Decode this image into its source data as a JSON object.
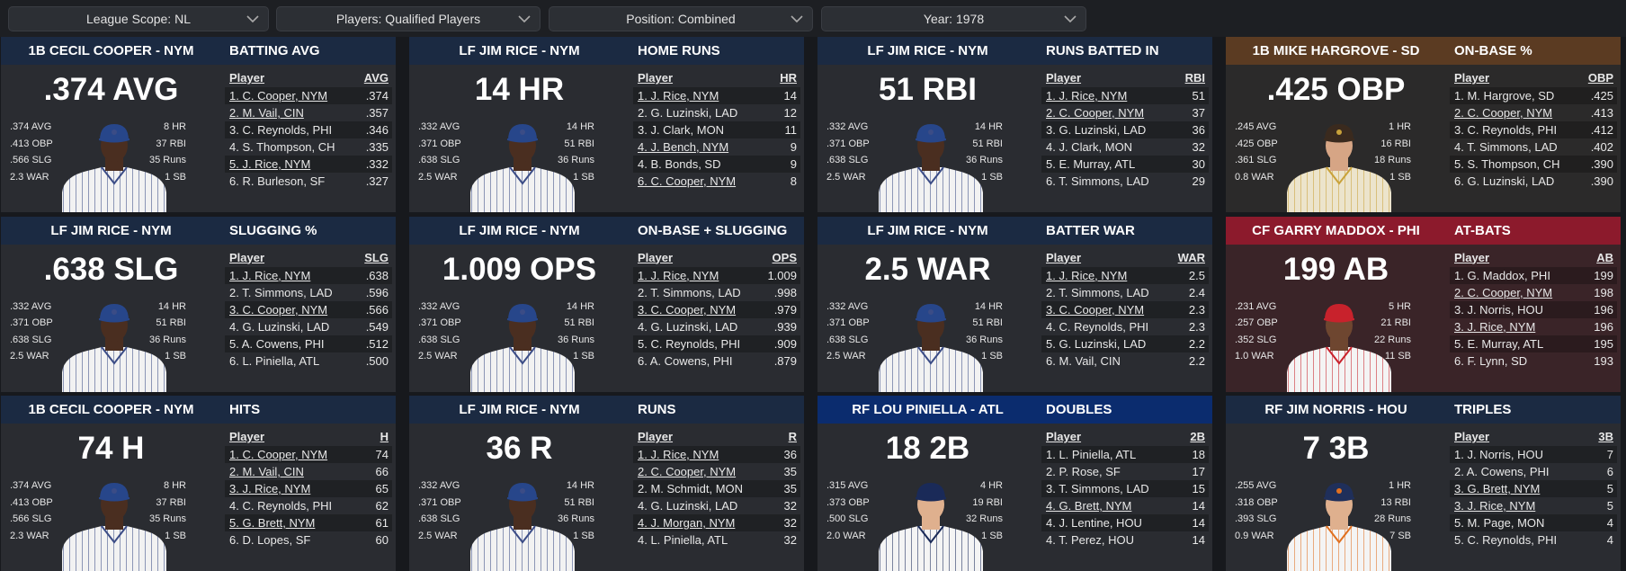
{
  "filters": [
    "League Scope: NL",
    "Players: Qualified Players",
    "Position: Combined",
    "Year: 1978"
  ],
  "cards": [
    {
      "player": "1B CECIL COOPER - NYM",
      "stat": "BATTING AVG",
      "big": ".374 AVG",
      "left": [
        ".374 AVG",
        ".413 OBP",
        ".566 SLG",
        "2.3 WAR"
      ],
      "right": [
        "8 HR",
        "37 RBI",
        "35 Runs",
        "1 SB"
      ],
      "columns": [
        "Player",
        "AVG"
      ],
      "rows": [
        {
          "name": "1. C. Cooper, NYM",
          "value": ".374",
          "linked": true
        },
        {
          "name": "2. M. Vail, CIN",
          "value": ".357",
          "linked": true
        },
        {
          "name": "3. C. Reynolds, PHI",
          "value": ".346",
          "linked": false
        },
        {
          "name": "4. S. Thompson, CH",
          "value": ".335",
          "linked": false
        },
        {
          "name": "5. J. Rice, NYM",
          "value": ".332",
          "linked": true
        },
        {
          "name": "6. R. Burleson, SF",
          "value": ".327",
          "linked": false
        }
      ],
      "header_color": "#1b2a42",
      "body_color": "#2a2c31",
      "uniform": {
        "cap": "#27468a",
        "jersey": "#f2f2f2",
        "stripe": "#3b4c86",
        "skin": "#4a2e20"
      }
    },
    {
      "player": "LF JIM RICE - NYM",
      "stat": "HOME RUNS",
      "big": "14 HR",
      "left": [
        ".332 AVG",
        ".371 OBP",
        ".638 SLG",
        "2.5 WAR"
      ],
      "right": [
        "14 HR",
        "51 RBI",
        "36 Runs",
        "1 SB"
      ],
      "columns": [
        "Player",
        "HR"
      ],
      "rows": [
        {
          "name": "1. J. Rice, NYM",
          "value": "14",
          "linked": true
        },
        {
          "name": "2. G. Luzinski, LAD",
          "value": "12",
          "linked": false
        },
        {
          "name": "3. J. Clark, MON",
          "value": "11",
          "linked": false
        },
        {
          "name": "4. J. Bench, NYM",
          "value": "9",
          "linked": true
        },
        {
          "name": "4. B. Bonds, SD",
          "value": "9",
          "linked": false
        },
        {
          "name": "6. C. Cooper, NYM",
          "value": "8",
          "linked": true
        }
      ],
      "header_color": "#1b2a42",
      "body_color": "#2a2c31",
      "uniform": {
        "cap": "#27468a",
        "jersey": "#f2f2f2",
        "stripe": "#3b4c86",
        "skin": "#4a2e20"
      }
    },
    {
      "player": "LF JIM RICE - NYM",
      "stat": "RUNS BATTED IN",
      "big": "51 RBI",
      "left": [
        ".332 AVG",
        ".371 OBP",
        ".638 SLG",
        "2.5 WAR"
      ],
      "right": [
        "14 HR",
        "51 RBI",
        "36 Runs",
        "1 SB"
      ],
      "columns": [
        "Player",
        "RBI"
      ],
      "rows": [
        {
          "name": "1. J. Rice, NYM",
          "value": "51",
          "linked": true
        },
        {
          "name": "2. C. Cooper, NYM",
          "value": "37",
          "linked": true
        },
        {
          "name": "3. G. Luzinski, LAD",
          "value": "36",
          "linked": false
        },
        {
          "name": "4. J. Clark, MON",
          "value": "32",
          "linked": false
        },
        {
          "name": "5. E. Murray, ATL",
          "value": "30",
          "linked": false
        },
        {
          "name": "6. T. Simmons, LAD",
          "value": "29",
          "linked": false
        }
      ],
      "header_color": "#1b2a42",
      "body_color": "#2a2c31",
      "uniform": {
        "cap": "#27468a",
        "jersey": "#f2f2f2",
        "stripe": "#3b4c86",
        "skin": "#4a2e20"
      }
    },
    {
      "player": "1B MIKE HARGROVE - SD",
      "stat": "ON-BASE %",
      "big": ".425 OBP",
      "left": [
        ".245 AVG",
        ".425 OBP",
        ".361 SLG",
        "0.8 WAR"
      ],
      "right": [
        "1 HR",
        "16 RBI",
        "18 Runs",
        "1 SB"
      ],
      "columns": [
        "Player",
        "OBP"
      ],
      "rows": [
        {
          "name": "1. M. Hargrove, SD",
          "value": ".425",
          "linked": false
        },
        {
          "name": "2. C. Cooper, NYM",
          "value": ".413",
          "linked": true
        },
        {
          "name": "3. C. Reynolds, PHI",
          "value": ".412",
          "linked": false
        },
        {
          "name": "4. T. Simmons, LAD",
          "value": ".402",
          "linked": false
        },
        {
          "name": "5. S. Thompson, CH",
          "value": ".390",
          "linked": false
        },
        {
          "name": "6. G. Luzinski, LAD",
          "value": ".390",
          "linked": false
        }
      ],
      "header_color": "#5b3b22",
      "body_color": "#2b2a2a",
      "uniform": {
        "cap": "#3a2a1e",
        "jersey": "#ece4cc",
        "stripe": "#c9a23a",
        "skin": "#d6a585"
      }
    },
    {
      "player": "LF JIM RICE - NYM",
      "stat": "SLUGGING %",
      "big": ".638 SLG",
      "left": [
        ".332 AVG",
        ".371 OBP",
        ".638 SLG",
        "2.5 WAR"
      ],
      "right": [
        "14 HR",
        "51 RBI",
        "36 Runs",
        "1 SB"
      ],
      "columns": [
        "Player",
        "SLG"
      ],
      "rows": [
        {
          "name": "1. J. Rice, NYM",
          "value": ".638",
          "linked": true
        },
        {
          "name": "2. T. Simmons, LAD",
          "value": ".596",
          "linked": false
        },
        {
          "name": "3. C. Cooper, NYM",
          "value": ".566",
          "linked": true
        },
        {
          "name": "4. G. Luzinski, LAD",
          "value": ".549",
          "linked": false
        },
        {
          "name": "5. A. Cowens, PHI",
          "value": ".512",
          "linked": false
        },
        {
          "name": "6. L. Piniella, ATL",
          "value": ".500",
          "linked": false
        }
      ],
      "header_color": "#1b2a42",
      "body_color": "#2a2c31",
      "uniform": {
        "cap": "#27468a",
        "jersey": "#f2f2f2",
        "stripe": "#3b4c86",
        "skin": "#4a2e20"
      }
    },
    {
      "player": "LF JIM RICE - NYM",
      "stat": "ON-BASE + SLUGGING",
      "big": "1.009 OPS",
      "left": [
        ".332 AVG",
        ".371 OBP",
        ".638 SLG",
        "2.5 WAR"
      ],
      "right": [
        "14 HR",
        "51 RBI",
        "36 Runs",
        "1 SB"
      ],
      "columns": [
        "Player",
        "OPS"
      ],
      "rows": [
        {
          "name": "1. J. Rice, NYM",
          "value": "1.009",
          "linked": true
        },
        {
          "name": "2. T. Simmons, LAD",
          "value": ".998",
          "linked": false
        },
        {
          "name": "3. C. Cooper, NYM",
          "value": ".979",
          "linked": true
        },
        {
          "name": "4. G. Luzinski, LAD",
          "value": ".939",
          "linked": false
        },
        {
          "name": "5. C. Reynolds, PHI",
          "value": ".909",
          "linked": false
        },
        {
          "name": "6. A. Cowens, PHI",
          "value": ".879",
          "linked": false
        }
      ],
      "header_color": "#1b2a42",
      "body_color": "#2a2c31",
      "uniform": {
        "cap": "#27468a",
        "jersey": "#f2f2f2",
        "stripe": "#3b4c86",
        "skin": "#4a2e20"
      }
    },
    {
      "player": "LF JIM RICE - NYM",
      "stat": "BATTER WAR",
      "big": "2.5 WAR",
      "left": [
        ".332 AVG",
        ".371 OBP",
        ".638 SLG",
        "2.5 WAR"
      ],
      "right": [
        "14 HR",
        "51 RBI",
        "36 Runs",
        "1 SB"
      ],
      "columns": [
        "Player",
        "WAR"
      ],
      "rows": [
        {
          "name": "1. J. Rice, NYM",
          "value": "2.5",
          "linked": true
        },
        {
          "name": "2. T. Simmons, LAD",
          "value": "2.4",
          "linked": false
        },
        {
          "name": "3. C. Cooper, NYM",
          "value": "2.3",
          "linked": true
        },
        {
          "name": "4. C. Reynolds, PHI",
          "value": "2.3",
          "linked": false
        },
        {
          "name": "5. G. Luzinski, LAD",
          "value": "2.2",
          "linked": false
        },
        {
          "name": "6. M. Vail, CIN",
          "value": "2.2",
          "linked": false
        }
      ],
      "header_color": "#1b2a42",
      "body_color": "#2a2c31",
      "uniform": {
        "cap": "#27468a",
        "jersey": "#f2f2f2",
        "stripe": "#3b4c86",
        "skin": "#4a2e20"
      }
    },
    {
      "player": "CF GARRY MADDOX - PHI",
      "stat": "AT-BATS",
      "big": "199 AB",
      "left": [
        ".231 AVG",
        ".257 OBP",
        ".352 SLG",
        "1.0 WAR"
      ],
      "right": [
        "5 HR",
        "21 RBI",
        "22 Runs",
        "11 SB"
      ],
      "columns": [
        "Player",
        "AB"
      ],
      "rows": [
        {
          "name": "1. G. Maddox, PHI",
          "value": "199",
          "linked": false
        },
        {
          "name": "2. C. Cooper, NYM",
          "value": "198",
          "linked": true
        },
        {
          "name": "3. J. Norris, HOU",
          "value": "196",
          "linked": false
        },
        {
          "name": "3. J. Rice, NYM",
          "value": "196",
          "linked": true
        },
        {
          "name": "5. E. Murray, ATL",
          "value": "195",
          "linked": false
        },
        {
          "name": "6. F. Lynn, SD",
          "value": "193",
          "linked": false
        }
      ],
      "header_color": "#8c1a2c",
      "body_color": "#3a2428",
      "uniform": {
        "cap": "#c8222c",
        "jersey": "#f4f4f4",
        "stripe": "#c8222c",
        "skin": "#6e4630"
      }
    },
    {
      "player": "1B CECIL COOPER - NYM",
      "stat": "HITS",
      "big": "74 H",
      "left": [
        ".374 AVG",
        ".413 OBP",
        ".566 SLG",
        "2.3 WAR"
      ],
      "right": [
        "8 HR",
        "37 RBI",
        "35 Runs",
        "1 SB"
      ],
      "columns": [
        "Player",
        "H"
      ],
      "rows": [
        {
          "name": "1. C. Cooper, NYM",
          "value": "74",
          "linked": true
        },
        {
          "name": "2. M. Vail, CIN",
          "value": "66",
          "linked": true
        },
        {
          "name": "3. J. Rice, NYM",
          "value": "65",
          "linked": true
        },
        {
          "name": "4. C. Reynolds, PHI",
          "value": "62",
          "linked": false
        },
        {
          "name": "5. G. Brett, NYM",
          "value": "61",
          "linked": true
        },
        {
          "name": "6. D. Lopes, SF",
          "value": "60",
          "linked": false
        }
      ],
      "header_color": "#1b2a42",
      "body_color": "#2a2c31",
      "uniform": {
        "cap": "#27468a",
        "jersey": "#f2f2f2",
        "stripe": "#3b4c86",
        "skin": "#4a2e20"
      }
    },
    {
      "player": "LF JIM RICE - NYM",
      "stat": "RUNS",
      "big": "36 R",
      "left": [
        ".332 AVG",
        ".371 OBP",
        ".638 SLG",
        "2.5 WAR"
      ],
      "right": [
        "14 HR",
        "51 RBI",
        "36 Runs",
        "1 SB"
      ],
      "columns": [
        "Player",
        "R"
      ],
      "rows": [
        {
          "name": "1. J. Rice, NYM",
          "value": "36",
          "linked": true
        },
        {
          "name": "2. C. Cooper, NYM",
          "value": "35",
          "linked": true
        },
        {
          "name": "2. M. Schmidt, MON",
          "value": "35",
          "linked": false
        },
        {
          "name": "4. G. Luzinski, LAD",
          "value": "32",
          "linked": false
        },
        {
          "name": "4. J. Morgan, NYM",
          "value": "32",
          "linked": true
        },
        {
          "name": "4. L. Piniella, ATL",
          "value": "32",
          "linked": false
        }
      ],
      "header_color": "#1b2a42",
      "body_color": "#2a2c31",
      "uniform": {
        "cap": "#27468a",
        "jersey": "#f2f2f2",
        "stripe": "#3b4c86",
        "skin": "#4a2e20"
      }
    },
    {
      "player": "RF LOU PINIELLA - ATL",
      "stat": "DOUBLES",
      "big": "18 2B",
      "left": [
        ".315 AVG",
        ".373 OBP",
        ".500 SLG",
        "2.0 WAR"
      ],
      "right": [
        "4 HR",
        "19 RBI",
        "32 Runs",
        "1 SB"
      ],
      "columns": [
        "Player",
        "2B"
      ],
      "rows": [
        {
          "name": "1. L. Piniella, ATL",
          "value": "18",
          "linked": false
        },
        {
          "name": "2. P. Rose, SF",
          "value": "17",
          "linked": false
        },
        {
          "name": "3. T. Simmons, LAD",
          "value": "15",
          "linked": false
        },
        {
          "name": "4. G. Brett, NYM",
          "value": "14",
          "linked": true
        },
        {
          "name": "4. J. Lentine, HOU",
          "value": "14",
          "linked": false
        },
        {
          "name": "4. T. Perez, HOU",
          "value": "14",
          "linked": false
        }
      ],
      "header_color": "#0b2c6e",
      "body_color": "#2a2c31",
      "uniform": {
        "cap": "#1a2a58",
        "jersey": "#f4f4f4",
        "stripe": "#1a2a58",
        "skin": "#dfb08e"
      }
    },
    {
      "player": "RF JIM NORRIS - HOU",
      "stat": "TRIPLES",
      "big": "7 3B",
      "left": [
        ".255 AVG",
        ".318 OBP",
        ".393 SLG",
        "0.9 WAR"
      ],
      "right": [
        "1 HR",
        "13 RBI",
        "28 Runs",
        "7 SB"
      ],
      "columns": [
        "Player",
        "3B"
      ],
      "rows": [
        {
          "name": "1. J. Norris, HOU",
          "value": "7",
          "linked": false
        },
        {
          "name": "2. A. Cowens, PHI",
          "value": "6",
          "linked": false
        },
        {
          "name": "3. G. Brett, NYM",
          "value": "5",
          "linked": true
        },
        {
          "name": "3. J. Rice, NYM",
          "value": "5",
          "linked": true
        },
        {
          "name": "5. M. Page, MON",
          "value": "4",
          "linked": false
        },
        {
          "name": "5. C. Reynolds, PHI",
          "value": "4",
          "linked": false
        }
      ],
      "header_color": "#1b2a42",
      "body_color": "#2a2c31",
      "uniform": {
        "cap": "#1f2f5a",
        "jersey": "#f4f4f4",
        "stripe": "#e07020",
        "skin": "#dfb08e"
      }
    }
  ]
}
